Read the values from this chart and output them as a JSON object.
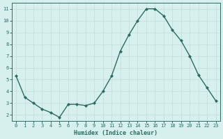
{
  "x": [
    0,
    1,
    2,
    3,
    4,
    5,
    6,
    7,
    8,
    9,
    10,
    11,
    12,
    13,
    14,
    15,
    16,
    17,
    18,
    19,
    20,
    21,
    22,
    23
  ],
  "y": [
    5.3,
    3.5,
    3.0,
    2.5,
    2.2,
    1.8,
    2.9,
    2.9,
    2.8,
    3.0,
    4.0,
    5.3,
    7.4,
    8.8,
    10.0,
    11.0,
    11.0,
    10.4,
    9.2,
    8.3,
    7.0,
    5.4,
    4.3,
    3.2
  ],
  "xlabel": "Humidex (Indice chaleur)",
  "line_color": "#2e6b5e",
  "bg_color": "#d6f0ee",
  "grid_color": "#c8dedd",
  "tick_color": "#2e6b5e",
  "xlim": [
    -0.5,
    23.5
  ],
  "ylim": [
    1.5,
    11.5
  ],
  "yticks": [
    2,
    3,
    4,
    5,
    6,
    7,
    8,
    9,
    10,
    11
  ],
  "xtick_labels": [
    "0",
    "1",
    "2",
    "3",
    "4",
    "5",
    "6",
    "7",
    "8",
    "9",
    "10",
    "11",
    "12",
    "13",
    "14",
    "15",
    "16",
    "17",
    "18",
    "19",
    "20",
    "21",
    "22",
    "23"
  ],
  "marker": "D",
  "marker_size": 2.0,
  "line_width": 1.0,
  "tick_fontsize": 5.0,
  "xlabel_fontsize": 6.0
}
